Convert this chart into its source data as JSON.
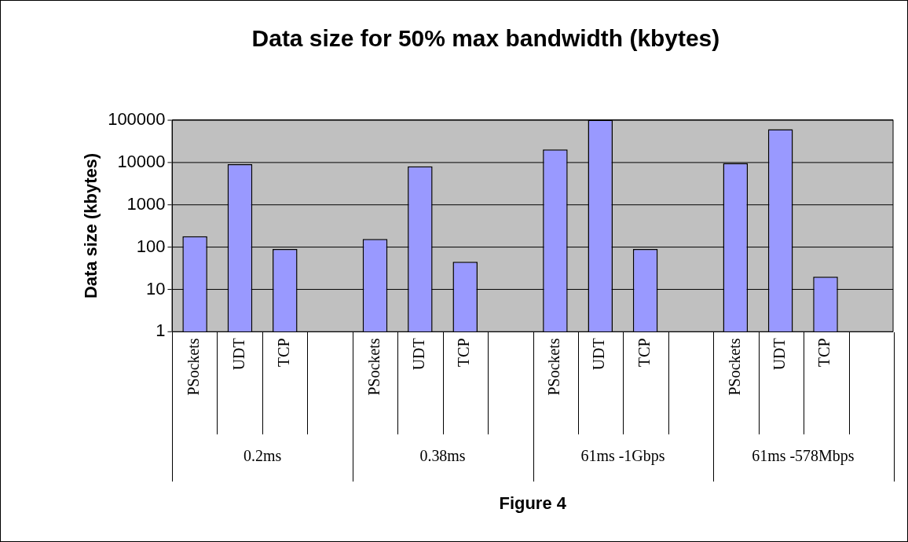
{
  "chart_data": {
    "type": "bar",
    "title": "Data size for 50% max bandwidth (kbytes)",
    "ylabel": "Data size (kbytes)",
    "categories": [
      "PSockets",
      "UDT",
      "TCP",
      null,
      "PSockets",
      "UDT",
      "TCP",
      null,
      "PSockets",
      "UDT",
      "TCP",
      null,
      "PSockets",
      "UDT",
      "TCP",
      null
    ],
    "values": [
      180,
      9000,
      90,
      null,
      155,
      8000,
      45,
      null,
      20000,
      100000,
      90,
      null,
      9500,
      60000,
      20,
      null
    ],
    "color": "#9999ff",
    "log": "y",
    "ylim": [
      1,
      100000
    ],
    "yticks": [
      1,
      10,
      100,
      1000,
      10000,
      100000
    ],
    "grid": "y",
    "annotations": [
      "0.2ms",
      "0.38ms",
      "61ms -1Gbps",
      "61ms -578Mbps",
      "Figure 4"
    ]
  }
}
